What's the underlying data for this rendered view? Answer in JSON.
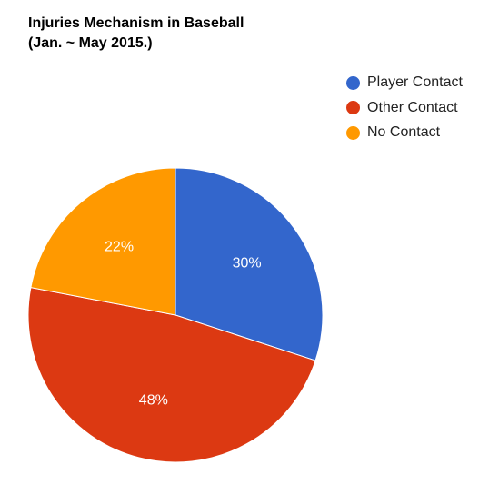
{
  "chart_data": {
    "type": "pie",
    "title": "Injuries Mechanism in Baseball",
    "subtitle": "(Jan. ~ May 2015.)",
    "categories": [
      "Player Contact",
      "Other Contact",
      "No Contact"
    ],
    "values": [
      30,
      48,
      22
    ],
    "labels": [
      "30%",
      "48%",
      "22%"
    ],
    "colors": [
      "#3366cc",
      "#dc3912",
      "#ff9900"
    ],
    "legend_position": "top-right"
  }
}
